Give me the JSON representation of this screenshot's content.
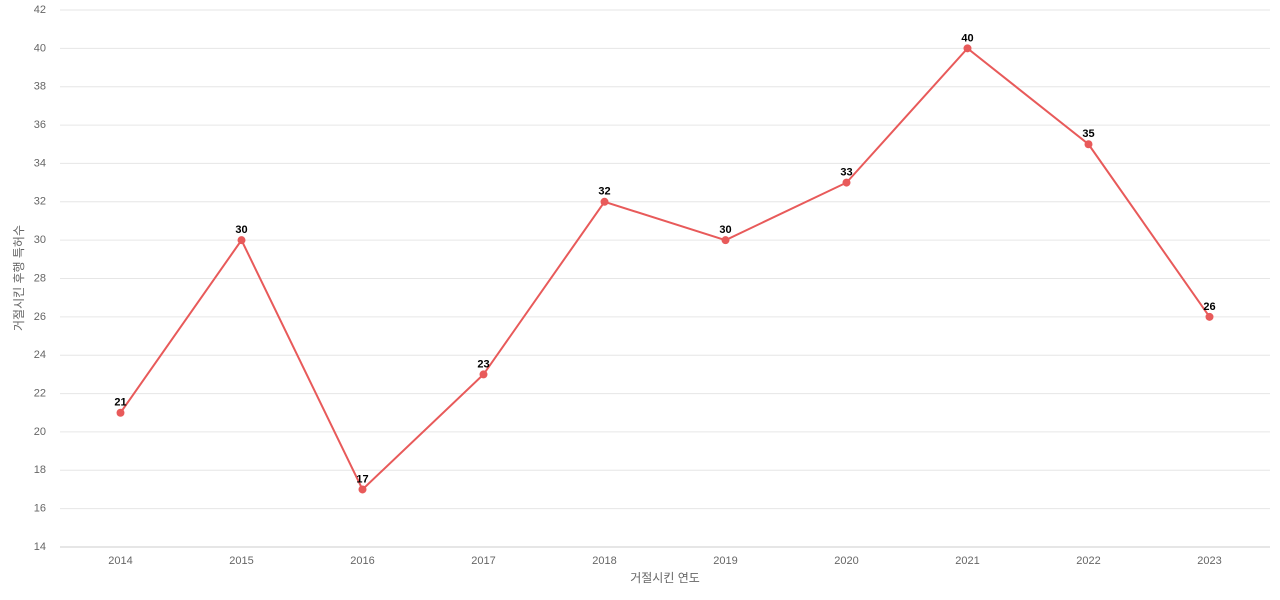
{
  "chart_data": {
    "type": "line",
    "x_label": "거절시킨 연도",
    "y_label": "거절시킨 후행 특허수",
    "categories": [
      "2014",
      "2015",
      "2016",
      "2017",
      "2018",
      "2019",
      "2020",
      "2021",
      "2022",
      "2023"
    ],
    "values": [
      21,
      30,
      17,
      23,
      32,
      30,
      33,
      40,
      35,
      26
    ],
    "color": "#e85a5a",
    "ylim": [
      14,
      42
    ],
    "yticks": [
      14,
      16,
      18,
      20,
      22,
      24,
      26,
      28,
      30,
      32,
      34,
      36,
      38,
      40,
      42
    ],
    "grid": true
  }
}
